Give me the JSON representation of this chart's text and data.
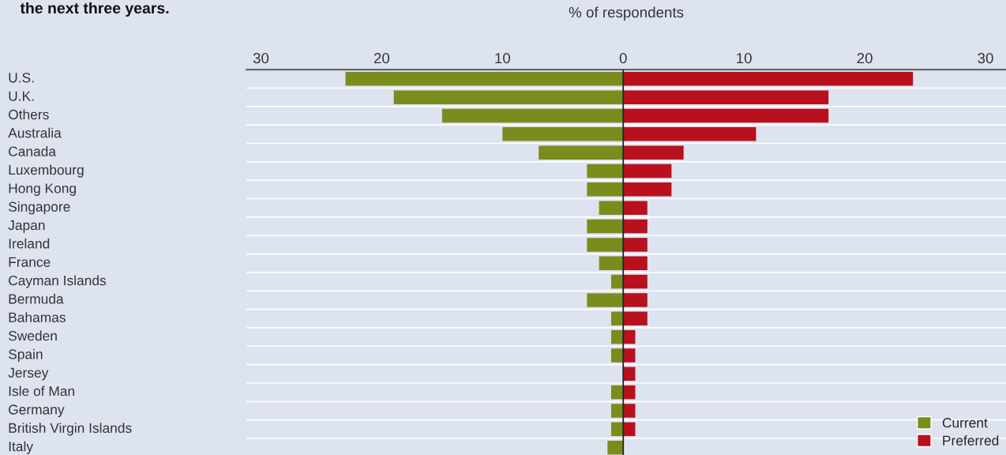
{
  "chart_data": {
    "type": "bar",
    "orientation": "horizontal",
    "stacked": true,
    "title": "the next three years.",
    "xlabel": "% of respondents",
    "categories": [
      "U.S.",
      "U.K.",
      "Others",
      "Australia",
      "Canada",
      "Luxembourg",
      "Hong Kong",
      "Singapore",
      "Japan",
      "Ireland",
      "France",
      "Cayman Islands",
      "Bermuda",
      "Bahamas",
      "Sweden",
      "Spain",
      "Jersey",
      "Isle of Man",
      "Germany",
      "British Virgin Islands",
      "Italy"
    ],
    "series": [
      {
        "name": "Current",
        "color": "#7a8c1c",
        "values": [
          -23,
          -19,
          -15,
          -10,
          -7,
          -3,
          -3,
          -2,
          -3,
          -3,
          -2,
          -1,
          -3,
          -1,
          -1,
          -1,
          0,
          -1,
          -1,
          -1,
          -1.3
        ]
      },
      {
        "name": "Preferred",
        "color": "#b8111d",
        "values": [
          24,
          17,
          17,
          11,
          5,
          4,
          4,
          2,
          2,
          2,
          2,
          2,
          2,
          2,
          1,
          1,
          1,
          1,
          1,
          1,
          0
        ]
      }
    ],
    "xlim": [
      -31.2,
      31.7
    ],
    "xticks": [
      {
        "value": -30,
        "label": "30"
      },
      {
        "value": -20,
        "label": "20"
      },
      {
        "value": -10,
        "label": "10"
      },
      0,
      10,
      20,
      30
    ],
    "ref_lines": [
      {
        "axis": "x",
        "value": 0,
        "color": "#222222"
      }
    ],
    "grid": "y",
    "legend": "bottom right"
  }
}
